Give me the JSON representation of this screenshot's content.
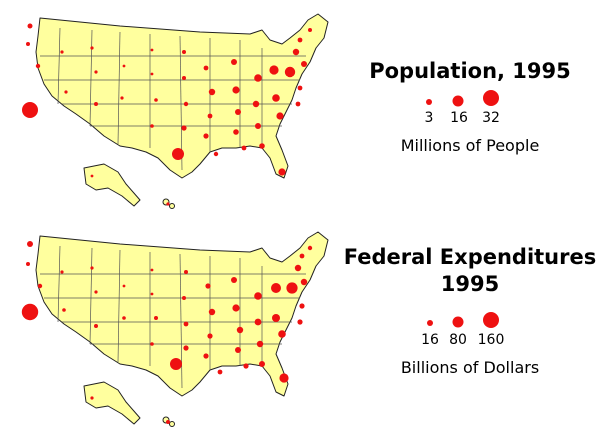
{
  "legends": [
    {
      "title_lines": [
        "Population, 1995"
      ],
      "scale_values": [
        "3",
        "16",
        "32"
      ],
      "unit_label": "Millions of People"
    },
    {
      "title_lines": [
        "Federal Expenditures",
        "1995"
      ],
      "scale_values": [
        "16",
        "80",
        "160"
      ],
      "unit_label": "Billions of Dollars"
    }
  ],
  "dot_color": "#ee1111",
  "land_color": "#ffff9e"
}
